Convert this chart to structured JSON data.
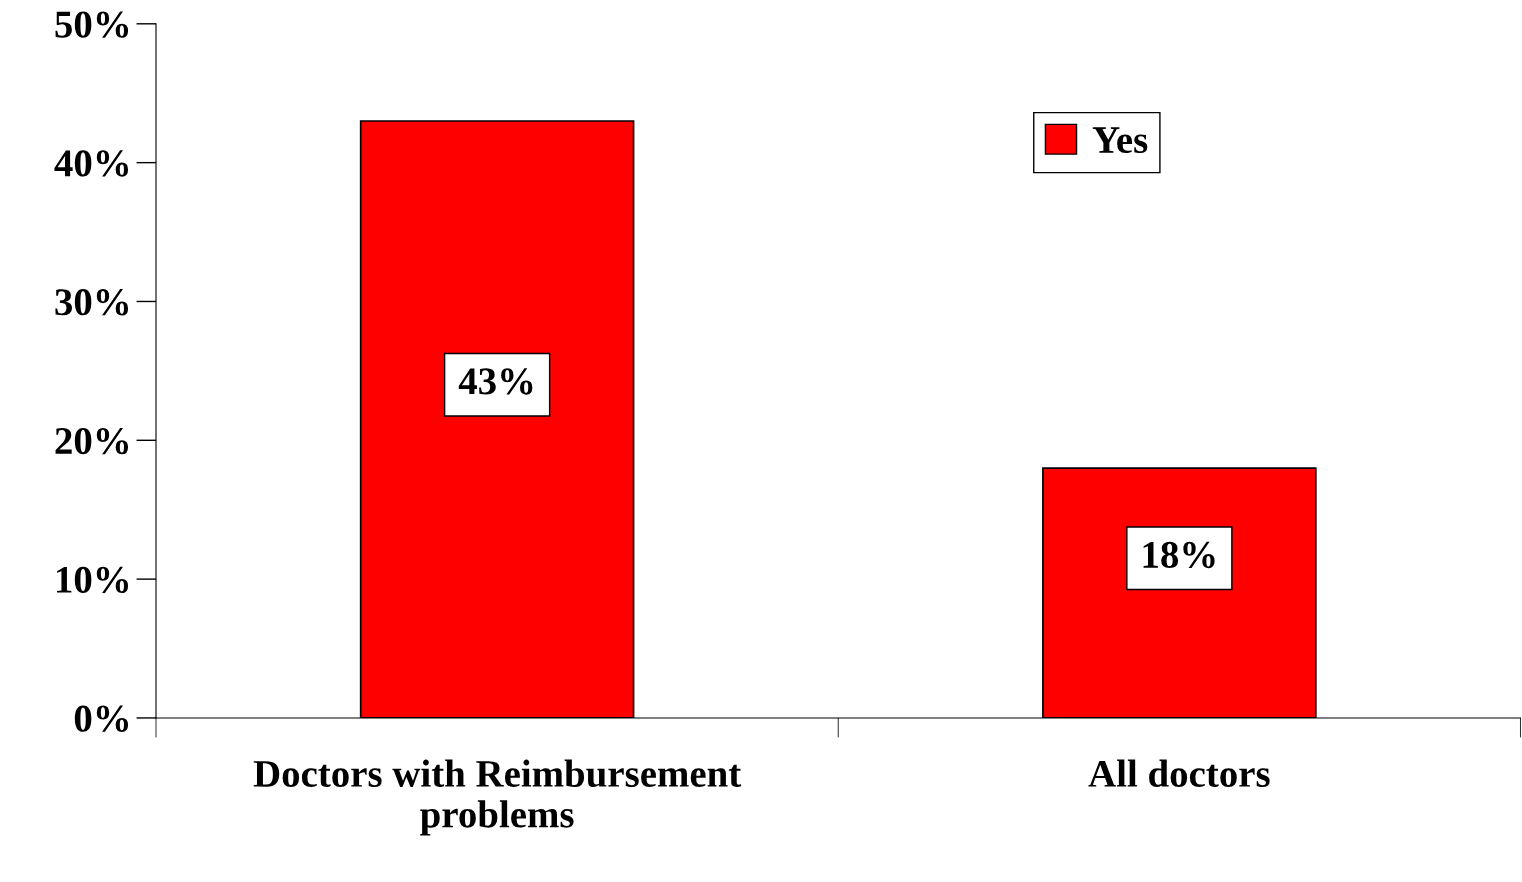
{
  "chart_data": {
    "type": "bar",
    "categories": [
      "Doctors with Reimbursement\nproblems",
      "All doctors"
    ],
    "series": [
      {
        "name": "Yes",
        "color": "#ff0000",
        "values": [
          43,
          18
        ],
        "value_labels": [
          "43%",
          "18%"
        ]
      }
    ],
    "ylim": [
      0,
      50
    ],
    "yticks": [
      {
        "value": 0,
        "label": "0%"
      },
      {
        "value": 10,
        "label": "10%"
      },
      {
        "value": 20,
        "label": "20%"
      },
      {
        "value": 30,
        "label": "30%"
      },
      {
        "value": 40,
        "label": "40%"
      },
      {
        "value": 50,
        "label": "50%"
      }
    ],
    "grid": false,
    "legend": "top right"
  }
}
